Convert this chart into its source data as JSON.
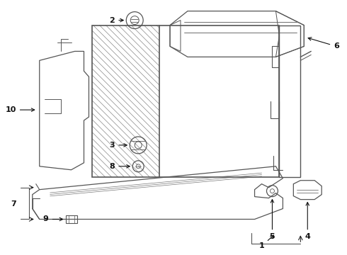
{
  "background_color": "#ffffff",
  "line_color": "#555555",
  "label_color": "#111111",
  "fig_w": 4.9,
  "fig_h": 3.6,
  "dpi": 100
}
